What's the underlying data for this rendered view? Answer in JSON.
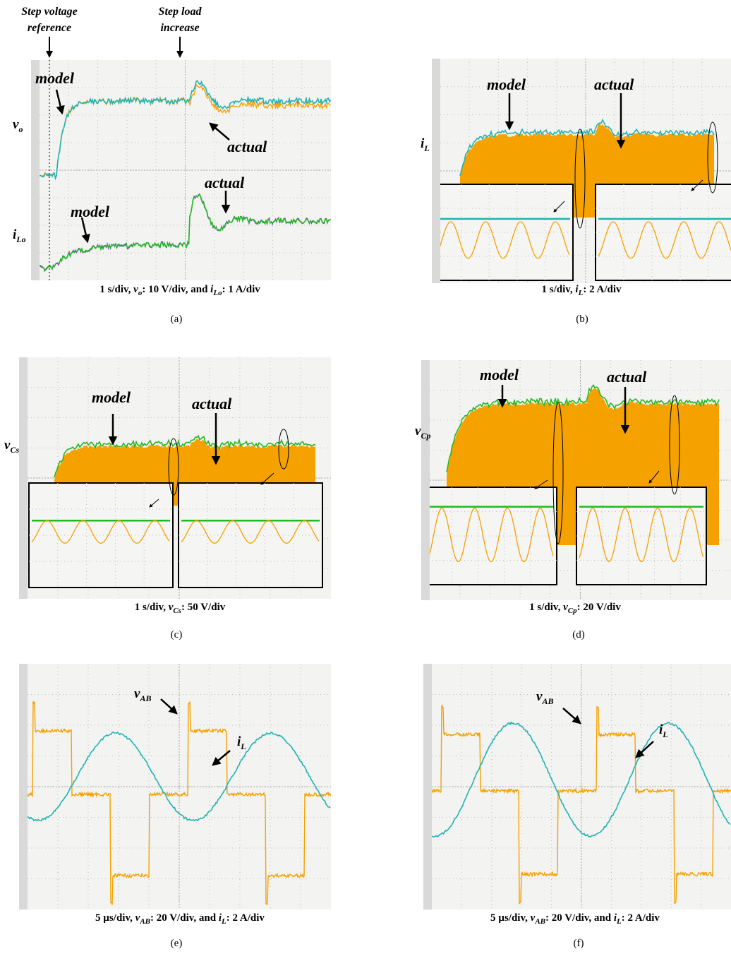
{
  "colors": {
    "cyan": "#1fb3b3",
    "orange": "#f5a100",
    "green": "#22b822",
    "purple": "#8a2be2",
    "grid": "#bdbdbd"
  },
  "top_annotations": {
    "step_voltage_reference": "Step voltage reference",
    "step_load_increase": "Step load increase"
  },
  "panels": {
    "a": {
      "caption": "1 s/div, vₒ: 10 V/div, and iₗₒ: 1 A/div",
      "caption_parts": [
        "1 s/div, ",
        "vo",
        ": 10 V/div, and ",
        "iLo",
        ": 1 A/div"
      ],
      "label": "(a)",
      "model": "model",
      "actual": "actual",
      "actual2": "actual",
      "model2": "model",
      "sym1": "v",
      "sym1_sub": "o",
      "sym2": "i",
      "sym2_sub": "Lo"
    },
    "b": {
      "caption_parts": [
        "1 s/div,  ",
        "iL",
        ": 2 A/div"
      ],
      "label": "(b)",
      "model": "model",
      "actual": "actual",
      "sym1": "i",
      "sym1_sub": "L"
    },
    "c": {
      "caption_parts": [
        "1 s/div, ",
        "vCs",
        ": 50 V/div"
      ],
      "label": "(c)",
      "model": "model",
      "actual": "actual",
      "sym1": "v",
      "sym1_sub": "Cs"
    },
    "d": {
      "caption_parts": [
        "1 s/div, ",
        "vCp",
        ": 20 V/div"
      ],
      "label": "(d)",
      "model": "model",
      "actual": "actual",
      "sym1": "v",
      "sym1_sub": "Cp"
    },
    "e": {
      "caption_parts": [
        "5 µs/div, ",
        "vAB",
        ": 20 V/div, and ",
        "iL",
        ": 2 A/div"
      ],
      "label": "(e)",
      "sym1": "v",
      "sym1_sub": "AB",
      "sym2": "i",
      "sym2_sub": "L"
    },
    "f": {
      "caption_parts": [
        "5 µs/div, ",
        "vAB",
        ": 20 V/div, and ",
        "iL",
        ": 2 A/div"
      ],
      "label": "(f)",
      "sym1": "v",
      "sym1_sub": "AB",
      "sym2": "i",
      "sym2_sub": "L"
    }
  },
  "chart_data": [
    {
      "type": "line",
      "panel": "a",
      "x_unit": "s",
      "series": [
        {
          "name": "model",
          "values": "vo step"
        },
        {
          "name": "actual",
          "values": "vo step"
        },
        {
          "name": "model",
          "values": "iLo step"
        },
        {
          "name": "actual",
          "values": "iLo step"
        }
      ],
      "xlabel": "",
      "ylabel": ""
    },
    {
      "type": "line",
      "panel": "b",
      "series": [
        {
          "name": "model"
        },
        {
          "name": "actual"
        }
      ]
    },
    {
      "type": "line",
      "panel": "c",
      "series": [
        {
          "name": "model"
        },
        {
          "name": "actual"
        }
      ]
    },
    {
      "type": "line",
      "panel": "d",
      "series": [
        {
          "name": "model"
        },
        {
          "name": "actual"
        }
      ]
    },
    {
      "type": "line",
      "panel": "e",
      "series": [
        {
          "name": "vAB"
        },
        {
          "name": "iL"
        }
      ]
    },
    {
      "type": "line",
      "panel": "f",
      "series": [
        {
          "name": "vAB"
        },
        {
          "name": "iL"
        }
      ]
    }
  ]
}
